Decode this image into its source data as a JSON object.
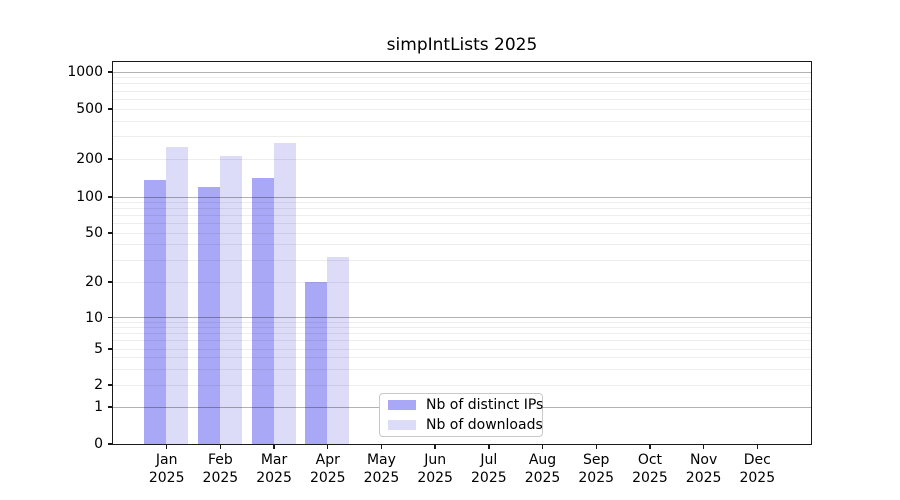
{
  "chart": {
    "title": "simpIntLists 2025",
    "chart_data": {
      "type": "bar",
      "categories": [
        "Jan 2025",
        "Feb 2025",
        "Mar 2025",
        "Apr 2025",
        "May 2025",
        "Jun 2025",
        "Jul 2025",
        "Aug 2025",
        "Sep 2025",
        "Oct 2025",
        "Nov 2025",
        "Dec 2025"
      ],
      "series": [
        {
          "name": "Nb of distinct IPs",
          "color": "#a8a8f6",
          "values": [
            136,
            120,
            141,
            20,
            0,
            0,
            0,
            0,
            0,
            0,
            0,
            0
          ]
        },
        {
          "name": "Nb of downloads",
          "color": "#dcdcf9",
          "values": [
            250,
            211,
            268,
            32,
            0,
            0,
            0,
            0,
            0,
            0,
            0,
            0
          ]
        }
      ],
      "yscale": "symlog",
      "ylim": [
        0,
        1200
      ],
      "y_ticks": [
        1000,
        500,
        200,
        100,
        50,
        20,
        10,
        5,
        2,
        1,
        0
      ],
      "y_tick_labels": [
        "1000",
        "500",
        "200",
        "100",
        "50",
        "20",
        "10",
        "5",
        "2",
        "1",
        "0"
      ],
      "y_minor_gridlines": [
        2,
        3,
        4,
        5,
        6,
        7,
        8,
        9,
        20,
        30,
        40,
        50,
        60,
        70,
        80,
        90,
        200,
        300,
        400,
        500,
        600,
        700,
        800,
        900
      ],
      "y_major_gridlines": [
        1,
        10,
        100,
        1000
      ],
      "xlabel": "",
      "ylabel": "",
      "grid": "horizontal",
      "legend": {
        "position": "bottom-center",
        "entries": [
          "Nb of distinct IPs",
          "Nb of downloads"
        ]
      }
    }
  }
}
